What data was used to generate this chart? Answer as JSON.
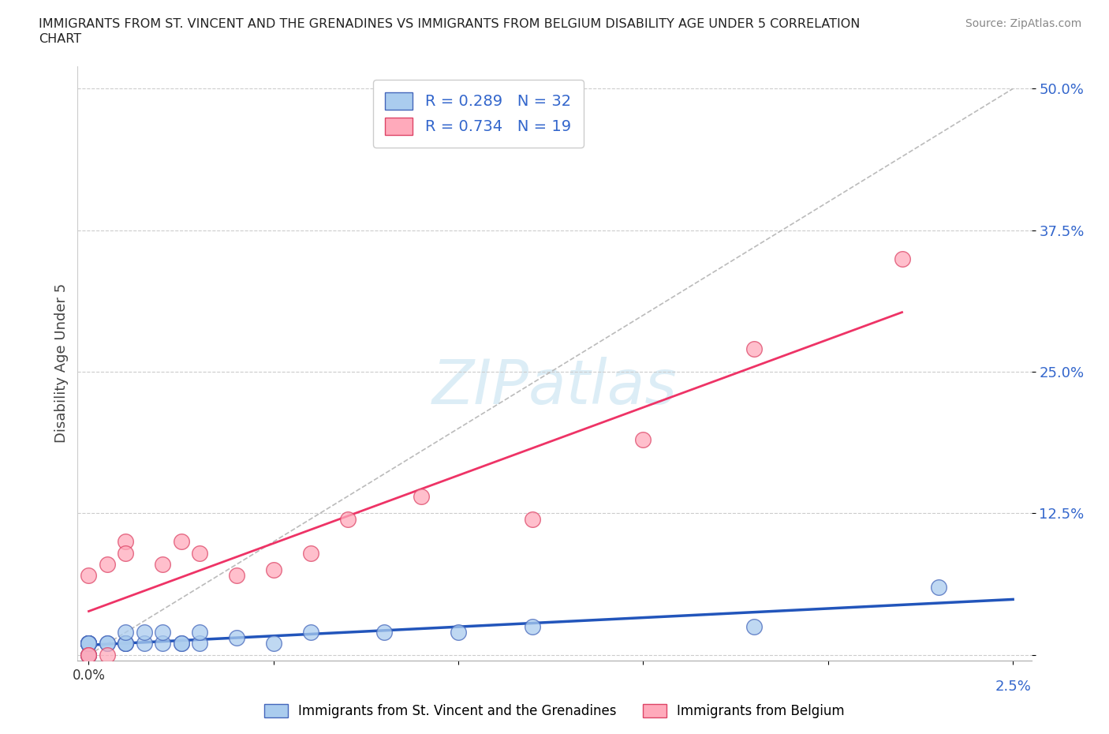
{
  "title_line1": "IMMIGRANTS FROM ST. VINCENT AND THE GRENADINES VS IMMIGRANTS FROM BELGIUM DISABILITY AGE UNDER 5 CORRELATION",
  "title_line2": "CHART",
  "source": "Source: ZipAtlas.com",
  "ylabel": "Disability Age Under 5",
  "series1_color": "#aaccee",
  "series1_edge": "#4466bb",
  "series2_color": "#ffaabb",
  "series2_edge": "#dd4466",
  "trend1_color": "#2255bb",
  "trend2_color": "#ee3366",
  "diagonal_color": "#bbbbbb",
  "background_color": "#ffffff",
  "watermark": "ZIPatlas",
  "legend_R1": "R = 0.289",
  "legend_N1": "N = 32",
  "legend_R2": "R = 0.734",
  "legend_N2": "N = 19",
  "label1": "Immigrants from St. Vincent and the Grenadines",
  "label2": "Immigrants from Belgium",
  "xlim": [
    0.0,
    0.025
  ],
  "ylim": [
    0.0,
    0.5
  ],
  "series1_x": [
    0.0,
    0.0,
    0.0,
    0.0,
    0.0,
    0.0,
    0.0,
    0.0,
    0.0,
    0.0,
    0.0005,
    0.0005,
    0.001,
    0.001,
    0.001,
    0.001,
    0.0015,
    0.0015,
    0.002,
    0.002,
    0.0025,
    0.0025,
    0.003,
    0.003,
    0.004,
    0.005,
    0.006,
    0.008,
    0.01,
    0.012,
    0.018,
    0.023
  ],
  "series1_y": [
    0.0,
    0.0,
    0.01,
    0.01,
    0.01,
    0.01,
    0.01,
    0.01,
    0.01,
    0.01,
    0.01,
    0.01,
    0.01,
    0.01,
    0.01,
    0.02,
    0.01,
    0.02,
    0.01,
    0.02,
    0.01,
    0.01,
    0.01,
    0.02,
    0.015,
    0.01,
    0.02,
    0.02,
    0.02,
    0.025,
    0.025,
    0.06
  ],
  "series2_x": [
    0.0,
    0.0,
    0.0,
    0.0005,
    0.0005,
    0.001,
    0.001,
    0.002,
    0.0025,
    0.003,
    0.004,
    0.005,
    0.006,
    0.007,
    0.009,
    0.012,
    0.015,
    0.018,
    0.022
  ],
  "series2_y": [
    0.0,
    0.0,
    0.07,
    0.0,
    0.08,
    0.1,
    0.09,
    0.08,
    0.1,
    0.09,
    0.07,
    0.075,
    0.09,
    0.12,
    0.14,
    0.12,
    0.19,
    0.27,
    0.35
  ]
}
